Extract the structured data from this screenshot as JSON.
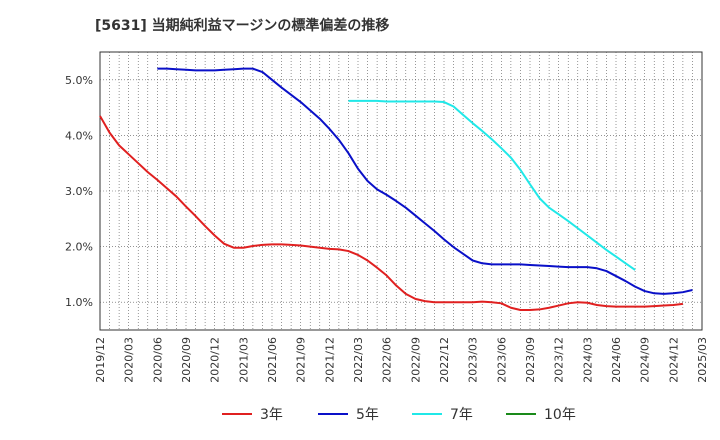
{
  "chart_data": {
    "type": "line",
    "title": "[5631]  当期純利益マージンの標準偏差の推移",
    "xlabel": "",
    "ylabel": "",
    "ylim": [
      0.5,
      5.5
    ],
    "y_ticks": [
      "1.0%",
      "2.0%",
      "3.0%",
      "4.0%",
      "5.0%"
    ],
    "y_tick_values": [
      1.0,
      2.0,
      3.0,
      4.0,
      5.0
    ],
    "x_ticks": [
      "2019/12",
      "2020/03",
      "2020/06",
      "2020/09",
      "2020/12",
      "2021/03",
      "2021/06",
      "2021/09",
      "2021/12",
      "2022/03",
      "2022/06",
      "2022/09",
      "2022/12",
      "2023/03",
      "2023/06",
      "2023/09",
      "2023/12",
      "2024/03",
      "2024/06",
      "2024/09",
      "2024/12",
      "2025/03"
    ],
    "grid": true,
    "legend_position": "bottom",
    "series": [
      {
        "name": "3年",
        "color": "#e02020",
        "start_index": 0,
        "values": [
          4.35,
          4.05,
          3.82,
          3.66,
          3.5,
          3.34,
          3.2,
          3.05,
          2.9,
          2.72,
          2.55,
          2.37,
          2.2,
          2.05,
          1.98,
          1.98,
          2.01,
          2.03,
          2.04,
          2.04,
          2.03,
          2.02,
          2.0,
          1.98,
          1.96,
          1.95,
          1.92,
          1.85,
          1.75,
          1.62,
          1.48,
          1.3,
          1.15,
          1.06,
          1.02,
          1.0,
          1.0,
          1.0,
          1.0,
          1.0,
          1.01,
          1.0,
          0.98,
          0.9,
          0.86,
          0.86,
          0.87,
          0.9,
          0.94,
          0.98,
          1.0,
          0.99,
          0.95,
          0.93,
          0.92,
          0.92,
          0.92,
          0.92,
          0.93,
          0.94,
          0.95,
          0.97
        ]
      },
      {
        "name": "5年",
        "color": "#0a10c8",
        "start_index": 6,
        "values": [
          5.2,
          5.2,
          5.19,
          5.18,
          5.17,
          5.17,
          5.17,
          5.18,
          5.19,
          5.2,
          5.2,
          5.14,
          5.0,
          4.86,
          4.73,
          4.6,
          4.45,
          4.3,
          4.12,
          3.92,
          3.68,
          3.4,
          3.18,
          3.03,
          2.93,
          2.82,
          2.7,
          2.56,
          2.42,
          2.28,
          2.13,
          1.99,
          1.87,
          1.75,
          1.7,
          1.68,
          1.68,
          1.68,
          1.68,
          1.67,
          1.66,
          1.65,
          1.64,
          1.63,
          1.63,
          1.63,
          1.61,
          1.56,
          1.47,
          1.38,
          1.28,
          1.2,
          1.16,
          1.15,
          1.16,
          1.18,
          1.22
        ]
      },
      {
        "name": "7年",
        "color": "#20e8e8",
        "start_index": 26,
        "values": [
          4.62,
          4.62,
          4.62,
          4.62,
          4.61,
          4.61,
          4.61,
          4.61,
          4.61,
          4.61,
          4.6,
          4.52,
          4.37,
          4.22,
          4.08,
          3.93,
          3.77,
          3.6,
          3.38,
          3.12,
          2.87,
          2.7,
          2.58,
          2.46,
          2.33,
          2.2,
          2.07,
          1.94,
          1.82,
          1.7,
          1.58
        ]
      },
      {
        "name": "10年",
        "color": "#1a8a1a",
        "start_index": 0,
        "values": []
      }
    ]
  }
}
